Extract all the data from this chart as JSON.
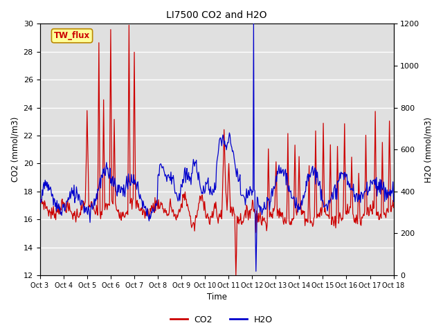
{
  "title": "LI7500 CO2 and H2O",
  "xlabel": "Time",
  "ylabel_left": "CO2 (mmol/m3)",
  "ylabel_right": "H2O (mmol/m3)",
  "annotation": "TW_flux",
  "ylim_left": [
    12,
    30
  ],
  "ylim_right": [
    0,
    1200
  ],
  "yticks_left": [
    12,
    14,
    16,
    18,
    20,
    22,
    24,
    26,
    28,
    30
  ],
  "yticks_right": [
    0,
    200,
    400,
    600,
    800,
    1000,
    1200
  ],
  "xtick_labels": [
    "Oct 3",
    "Oct 4",
    "Oct 5",
    "Oct 6",
    "Oct 7",
    "Oct 8",
    "Oct 9",
    "Oct 10",
    "Oct 11",
    "Oct 12",
    "Oct 13",
    "Oct 14",
    "Oct 15",
    "Oct 16",
    "Oct 17",
    "Oct 18"
  ],
  "co2_color": "#CC0000",
  "h2o_color": "#0000CC",
  "legend_co2": "CO2",
  "legend_h2o": "H2O",
  "background_color": "#E0E0E0",
  "grid_color": "#FFFFFF",
  "annotation_bg": "#FFFF99",
  "annotation_border": "#BB8800",
  "annotation_text_color": "#CC0000",
  "figsize": [
    6.4,
    4.8
  ],
  "dpi": 100
}
